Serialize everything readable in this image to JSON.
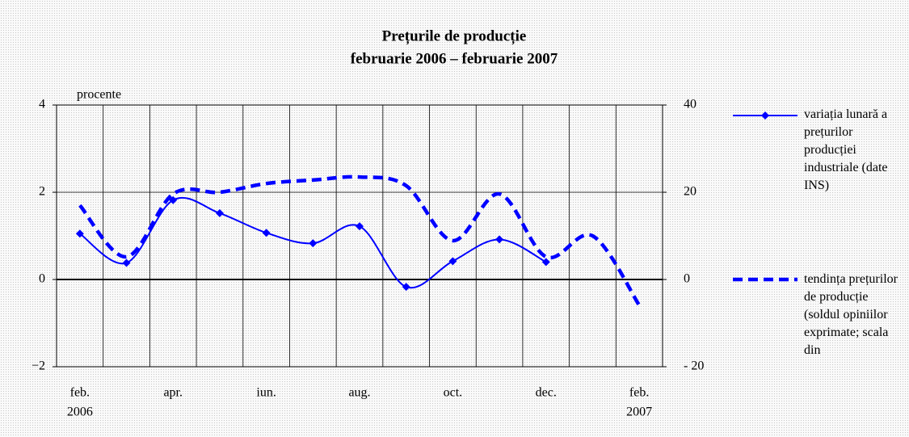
{
  "chart_data": {
    "type": "line",
    "title": "Prețurile de producție",
    "subtitle": "februarie 2006 – februarie 2007",
    "ylabel": "procente",
    "categories": [
      "feb.",
      null,
      "apr.",
      null,
      "iun.",
      null,
      "aug.",
      null,
      "oct.",
      null,
      "dec.",
      null,
      "feb."
    ],
    "year_labels": [
      "2006",
      "2007"
    ],
    "series": [
      {
        "name": "variația lunară a prețurilor producției industriale (date INS)",
        "color": "#0000ff",
        "style": "solid",
        "marker": "diamond",
        "values": [
          1.05,
          0.38,
          1.82,
          1.52,
          1.07,
          0.83,
          1.22,
          -0.17,
          0.42,
          0.92,
          0.4,
          null,
          null
        ]
      },
      {
        "name": "tendința prețurilor de producție (soldul opiniilor exprimate; scala din",
        "color": "#0000ff",
        "style": "dashed",
        "axis": "y2",
        "values": [
          17,
          5.2,
          19.6,
          20,
          22,
          22.8,
          23.5,
          21.5,
          8.9,
          19.6,
          5.2,
          10,
          -5.9
        ]
      }
    ],
    "ylim": [
      -2,
      4
    ],
    "yticks": [
      {
        "value": -2,
        "label": "−2"
      },
      0,
      2,
      4
    ],
    "y2lim": [
      -20,
      40
    ],
    "y2ticks": [
      {
        "value": -20,
        "label": "- 20"
      },
      0,
      20,
      40
    ],
    "grid": true,
    "legend": "right"
  }
}
